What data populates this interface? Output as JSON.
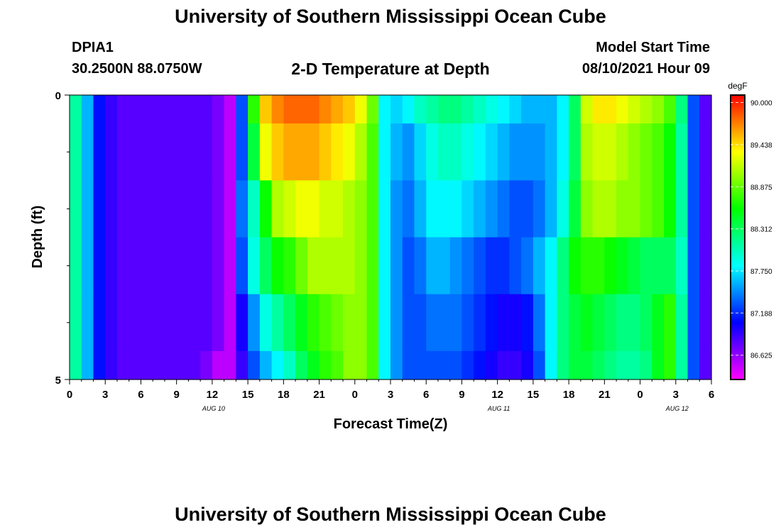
{
  "header": {
    "title": "University of Southern Mississippi Ocean Cube",
    "station_id": "DPIA1",
    "station_coords": "30.2500N  88.0750W",
    "plot_title": "2-D Temperature at Depth",
    "model_start_label": "Model Start Time",
    "model_start_value": "08/10/2021 Hour 09"
  },
  "footer": {
    "title": "University of Southern Mississippi Ocean Cube"
  },
  "chart_data": {
    "type": "heatmap",
    "title": "2-D Temperature at Depth",
    "xlabel": "Forecast Time(Z)",
    "ylabel": "Depth (ft)",
    "x_tick_labels": [
      "0",
      "3",
      "6",
      "9",
      "12",
      "15",
      "18",
      "21",
      "0",
      "3",
      "6",
      "9",
      "12",
      "15",
      "18",
      "21",
      "0",
      "3",
      "6"
    ],
    "x_range_hours": [
      0,
      54
    ],
    "date_labels": [
      {
        "label": "AUG 10",
        "hour": 12
      },
      {
        "label": "AUG 11",
        "hour": 36
      },
      {
        "label": "AUG 12",
        "hour": 51
      }
    ],
    "y_tick_labels": [
      "0",
      "5"
    ],
    "y_range_ft": [
      0,
      5
    ],
    "colorbar": {
      "unit": "degF",
      "levels": [
        "90.000",
        "89.438",
        "88.875",
        "88.312",
        "87.750",
        "87.188",
        "86.625"
      ],
      "min": 86.3,
      "max": 90.1
    },
    "depth_rows_ft": [
      0,
      1,
      2,
      3,
      4,
      5
    ],
    "hours": [
      0,
      1,
      2,
      3,
      4,
      5,
      6,
      7,
      8,
      9,
      10,
      11,
      12,
      13,
      14,
      15,
      16,
      17,
      18,
      19,
      20,
      21,
      22,
      23,
      24,
      25,
      26,
      27,
      28,
      29,
      30,
      31,
      32,
      33,
      34,
      35,
      36,
      37,
      38,
      39,
      40,
      41,
      42,
      43,
      44,
      45,
      46,
      47,
      48,
      49,
      50,
      51,
      52,
      53
    ],
    "temperature_degF": [
      [
        88.1,
        87.6,
        87.1,
        86.9,
        86.8,
        86.8,
        86.8,
        86.8,
        86.8,
        86.8,
        86.8,
        86.8,
        86.7,
        86.5,
        87.3,
        88.7,
        89.5,
        89.7,
        89.8,
        89.8,
        89.8,
        89.7,
        89.6,
        89.5,
        89.3,
        88.9,
        87.8,
        87.7,
        87.8,
        88.0,
        88.1,
        88.2,
        88.2,
        88.1,
        88.0,
        87.9,
        87.8,
        87.7,
        87.6,
        87.6,
        87.6,
        87.8,
        88.3,
        89.2,
        89.4,
        89.4,
        89.3,
        89.2,
        89.1,
        89.0,
        88.8,
        88.2,
        87.3,
        86.8
      ],
      [
        88.1,
        87.6,
        87.1,
        86.9,
        86.8,
        86.8,
        86.8,
        86.8,
        86.8,
        86.8,
        86.8,
        86.8,
        86.7,
        86.5,
        87.3,
        88.4,
        89.3,
        89.5,
        89.6,
        89.6,
        89.6,
        89.5,
        89.4,
        89.3,
        89.1,
        88.8,
        87.8,
        87.6,
        87.5,
        87.7,
        87.9,
        88.0,
        88.0,
        87.9,
        87.8,
        87.7,
        87.6,
        87.5,
        87.5,
        87.5,
        87.6,
        87.8,
        88.3,
        89.1,
        89.2,
        89.2,
        89.1,
        89.0,
        88.9,
        88.8,
        88.6,
        88.1,
        87.3,
        86.8
      ],
      [
        88.1,
        87.6,
        87.1,
        86.9,
        86.8,
        86.8,
        86.8,
        86.8,
        86.8,
        86.8,
        86.8,
        86.8,
        86.7,
        86.5,
        87.4,
        88.0,
        88.6,
        89.1,
        89.2,
        89.3,
        89.3,
        89.2,
        89.2,
        89.1,
        89.0,
        88.8,
        87.8,
        87.5,
        87.4,
        87.6,
        87.8,
        87.8,
        87.8,
        87.7,
        87.6,
        87.5,
        87.4,
        87.3,
        87.3,
        87.4,
        87.6,
        87.9,
        88.4,
        89.0,
        89.1,
        89.1,
        89.0,
        89.0,
        88.9,
        88.8,
        88.6,
        88.1,
        87.3,
        86.8
      ],
      [
        88.1,
        87.6,
        87.1,
        86.9,
        86.8,
        86.8,
        86.8,
        86.8,
        86.8,
        86.8,
        86.8,
        86.8,
        86.7,
        86.5,
        87.3,
        87.9,
        88.3,
        88.6,
        88.7,
        88.9,
        89.1,
        89.1,
        89.1,
        89.1,
        89.0,
        88.8,
        87.8,
        87.5,
        87.3,
        87.4,
        87.6,
        87.6,
        87.5,
        87.4,
        87.3,
        87.2,
        87.2,
        87.3,
        87.4,
        87.6,
        87.8,
        88.2,
        88.6,
        88.7,
        88.7,
        88.6,
        88.5,
        88.4,
        88.3,
        88.3,
        88.3,
        88.0,
        87.3,
        86.8
      ],
      [
        88.1,
        87.6,
        87.1,
        86.9,
        86.8,
        86.8,
        86.8,
        86.8,
        86.8,
        86.8,
        86.8,
        86.8,
        86.7,
        86.5,
        87.0,
        87.5,
        87.9,
        88.1,
        88.3,
        88.5,
        88.7,
        88.8,
        88.9,
        89.0,
        89.0,
        88.8,
        87.8,
        87.5,
        87.3,
        87.3,
        87.4,
        87.4,
        87.4,
        87.3,
        87.2,
        87.1,
        87.0,
        87.0,
        87.1,
        87.4,
        87.8,
        88.2,
        88.4,
        88.5,
        88.4,
        88.3,
        88.2,
        88.2,
        88.3,
        88.5,
        88.7,
        88.1,
        87.3,
        86.8
      ],
      [
        88.1,
        87.6,
        87.1,
        86.9,
        86.8,
        86.8,
        86.8,
        86.8,
        86.8,
        86.8,
        86.8,
        86.7,
        86.5,
        86.5,
        86.9,
        87.3,
        87.6,
        87.8,
        88.0,
        88.3,
        88.5,
        88.7,
        88.8,
        89.0,
        89.0,
        88.8,
        87.8,
        87.5,
        87.3,
        87.3,
        87.3,
        87.3,
        87.3,
        87.2,
        87.1,
        87.0,
        86.9,
        86.9,
        87.0,
        87.3,
        87.8,
        88.2,
        88.4,
        88.4,
        88.3,
        88.2,
        88.1,
        88.1,
        88.2,
        88.5,
        88.7,
        88.1,
        87.3,
        86.8
      ]
    ]
  }
}
